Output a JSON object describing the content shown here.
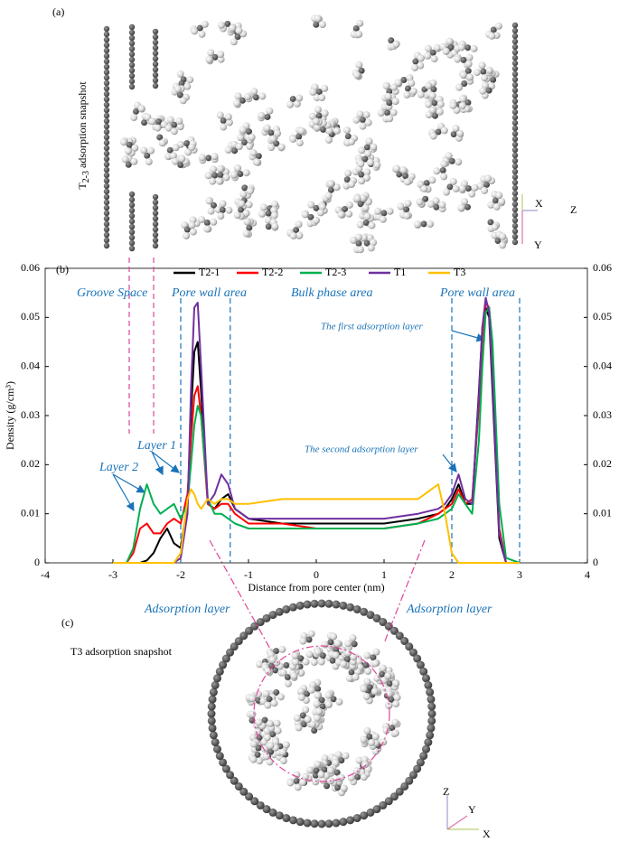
{
  "panel_labels": [
    "(a)",
    "(b)",
    "(c)"
  ],
  "snapshot_a": {
    "main": "T",
    "sub": "2-3",
    "rest": " adsorption snapshot"
  },
  "snapshot_c": "T3 adsorption snapshot",
  "triad_a": [
    "X",
    "Z",
    "Y"
  ],
  "triad_c": [
    "Z",
    "Y",
    "X"
  ],
  "chart_data": {
    "type": "line",
    "xlabel": "Distance from pore center (nm)",
    "ylabel": "Density (g/cm³)",
    "xlim": [
      -4,
      4
    ],
    "xticks": [
      -4,
      -3,
      -2,
      -1,
      0,
      1,
      2,
      3,
      4
    ],
    "ylim": [
      0,
      0.06
    ],
    "yticks": [
      0,
      0.01,
      0.02,
      0.03,
      0.04,
      0.05,
      0.06
    ],
    "y2lim": [
      0,
      0.06
    ],
    "y2ticks": [
      0,
      0.01,
      0.02,
      0.03,
      0.04,
      0.05,
      0.06
    ],
    "legend": "top",
    "x": [
      -3.0,
      -2.9,
      -2.8,
      -2.7,
      -2.6,
      -2.5,
      -2.4,
      -2.3,
      -2.2,
      -2.1,
      -2.0,
      -1.9,
      -1.85,
      -1.8,
      -1.75,
      -1.7,
      -1.6,
      -1.5,
      -1.4,
      -1.3,
      -1.2,
      -1.0,
      -0.5,
      0,
      0.5,
      1.0,
      1.5,
      1.8,
      1.9,
      2.0,
      2.1,
      2.2,
      2.3,
      2.4,
      2.45,
      2.5,
      2.55,
      2.6,
      2.7,
      2.8,
      3.0
    ],
    "series": [
      {
        "name": "T2-1",
        "color": "#000000",
        "values": [
          0,
          0,
          0,
          0,
          0,
          0.0005,
          0.002,
          0.005,
          0.007,
          0.004,
          0.003,
          0.012,
          0.03,
          0.043,
          0.045,
          0.035,
          0.012,
          0.011,
          0.013,
          0.014,
          0.011,
          0.009,
          0.008,
          0.008,
          0.008,
          0.008,
          0.009,
          0.01,
          0.011,
          0.013,
          0.016,
          0.012,
          0.012,
          0.035,
          0.048,
          0.052,
          0.05,
          0.035,
          0.005,
          0,
          0
        ]
      },
      {
        "name": "T2-2",
        "color": "#ff0000",
        "values": [
          0,
          0,
          0,
          0.002,
          0.007,
          0.008,
          0.006,
          0.006,
          0.008,
          0.009,
          0.008,
          0.014,
          0.025,
          0.034,
          0.036,
          0.03,
          0.012,
          0.011,
          0.012,
          0.012,
          0.01,
          0.008,
          0.008,
          0.007,
          0.007,
          0.007,
          0.008,
          0.01,
          0.011,
          0.012,
          0.015,
          0.012,
          0.013,
          0.032,
          0.046,
          0.053,
          0.052,
          0.04,
          0.007,
          0,
          0
        ]
      },
      {
        "name": "T2-3",
        "color": "#00b050",
        "values": [
          0,
          0,
          0,
          0.003,
          0.011,
          0.016,
          0.012,
          0.01,
          0.011,
          0.012,
          0.009,
          0.012,
          0.02,
          0.028,
          0.032,
          0.03,
          0.013,
          0.01,
          0.01,
          0.009,
          0.008,
          0.007,
          0.007,
          0.007,
          0.007,
          0.007,
          0.008,
          0.009,
          0.01,
          0.011,
          0.014,
          0.012,
          0.01,
          0.025,
          0.04,
          0.051,
          0.052,
          0.045,
          0.012,
          0.001,
          0
        ]
      },
      {
        "name": "T1",
        "color": "#7030a0",
        "values": [
          0,
          0,
          0,
          0,
          0,
          0,
          0,
          0,
          0,
          0,
          0.001,
          0.01,
          0.035,
          0.052,
          0.053,
          0.04,
          0.012,
          0.014,
          0.018,
          0.016,
          0.011,
          0.009,
          0.009,
          0.009,
          0.009,
          0.009,
          0.01,
          0.011,
          0.012,
          0.014,
          0.018,
          0.013,
          0.012,
          0.034,
          0.048,
          0.054,
          0.051,
          0.037,
          0.006,
          0,
          0
        ]
      },
      {
        "name": "T3",
        "color": "#ffc000",
        "values": [
          0,
          0,
          0,
          0,
          0,
          0,
          0,
          0,
          0,
          0,
          0.002,
          0.013,
          0.015,
          0.014,
          0.012,
          0.011,
          0.013,
          0.012,
          0.013,
          0.013,
          0.012,
          0.012,
          0.013,
          0.013,
          0.013,
          0.013,
          0.013,
          0.016,
          0.01,
          0.002,
          0,
          0,
          0,
          0,
          0,
          0,
          0,
          0,
          0,
          0,
          0
        ]
      }
    ],
    "vlines": [
      {
        "x": -2.76,
        "color": "#e0449a"
      },
      {
        "x": -2.4,
        "color": "#e0449a"
      },
      {
        "x": -2.0,
        "color": "#1a73b8"
      },
      {
        "x": -1.27,
        "color": "#1a73b8"
      },
      {
        "x": 2.0,
        "color": "#1a73b8"
      },
      {
        "x": 3.0,
        "color": "#1a73b8"
      }
    ],
    "annotations": [
      "Groove Space",
      "Pore wall area",
      "Bulk phase area",
      "Pore wall area",
      "The first adsorption layer",
      "The second adsorption layer",
      "Layer 1",
      "Layer 2",
      "Adsorption layer",
      "Adsorption layer"
    ]
  }
}
